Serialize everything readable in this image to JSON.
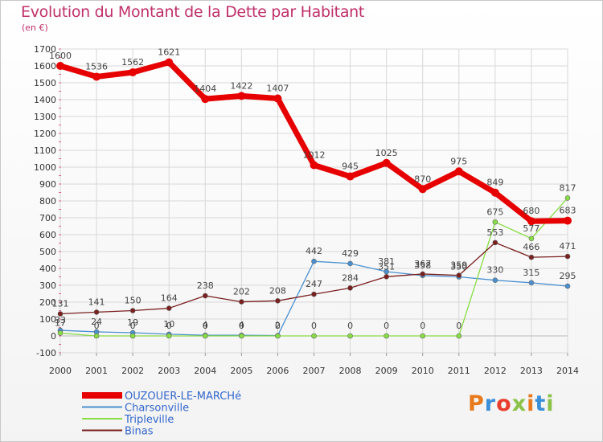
{
  "title": "Evolution du Montant de la Dette par Habitant",
  "subtitle": "(en €)",
  "logo": {
    "text": "Proxiti",
    "colors": [
      "#e87a1d",
      "#3a8fd8",
      "#e83e2e",
      "#8bc34a",
      "#e87a1d",
      "#3a8fd8",
      "#8bc34a"
    ]
  },
  "chart_data": {
    "type": "line",
    "categories": [
      "2000",
      "2001",
      "2002",
      "2003",
      "2004",
      "2005",
      "2006",
      "2007",
      "2008",
      "2009",
      "2010",
      "2011",
      "2012",
      "2013",
      "2014"
    ],
    "ylim": [
      -100,
      1700
    ],
    "yticks": [
      -100,
      0,
      100,
      200,
      300,
      400,
      500,
      600,
      700,
      800,
      900,
      1000,
      1100,
      1200,
      1300,
      1400,
      1500,
      1600,
      1700
    ],
    "grid": true,
    "legend_position": "bottom-left",
    "series": [
      {
        "name": "OUZOUER-LE-MARCHé",
        "color": "#e60000",
        "values": [
          1600,
          1536,
          1562,
          1621,
          1404,
          1422,
          1407,
          1012,
          945,
          1025,
          870,
          975,
          849,
          680,
          683
        ]
      },
      {
        "name": "Charsonville",
        "color": "#4a90d0",
        "values": [
          33,
          24,
          19,
          10,
          4,
          4,
          2,
          442,
          429,
          381,
          358,
          350,
          330,
          315,
          295
        ],
        "labels": [
          "33",
          "24",
          "19",
          "10",
          "4",
          "4",
          "2",
          "442",
          "429",
          "381",
          "358",
          "350",
          "330",
          "315",
          "295"
        ]
      },
      {
        "name": "Tripleville",
        "color": "#88dd44",
        "values": [
          17,
          0,
          0,
          0,
          0,
          0,
          0,
          0,
          0,
          0,
          0,
          0,
          675,
          577,
          817
        ],
        "labels": [
          "17",
          "0",
          "0",
          "0",
          "0",
          "0",
          "0",
          "0",
          "0",
          "0",
          "0",
          "0",
          "675",
          "577",
          "817"
        ]
      },
      {
        "name": "Binas",
        "color": "#7a1f1f",
        "values": [
          131,
          141,
          150,
          164,
          238,
          202,
          208,
          247,
          284,
          351,
          367,
          359,
          553,
          466,
          471
        ]
      }
    ]
  }
}
